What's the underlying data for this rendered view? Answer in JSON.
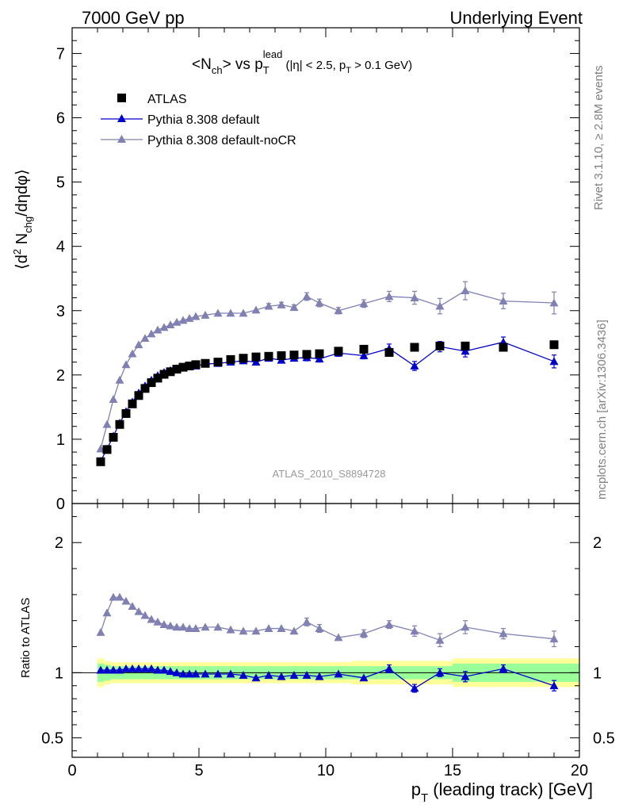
{
  "header": {
    "left": "7000 GeV pp",
    "right": "Underlying Event"
  },
  "title": {
    "prefix": "<N",
    "prefix_sub": "ch",
    "mid": "> vs p",
    "mid_sub": "T",
    "mid_sup": "lead",
    "cond1": " (|η| < 2.5, p",
    "cond_sub": "T",
    "cond2": " > 0.1 GeV)"
  },
  "side_labels": {
    "rivet": "Rivet 3.1.10, ≥ 2.8M events",
    "mcplots": "mcplots.cern.ch [arXiv:1306.3436]"
  },
  "analysis_label": "ATLAS_2010_S8894728",
  "ylabel_main": {
    "a": "⟨d",
    "a_sup": "2",
    "b": " N",
    "b_sub": "chg",
    "c": "/dηdφ⟩"
  },
  "ylabel_ratio": "Ratio to ATLAS",
  "xlabel": {
    "a": "p",
    "a_sub": "T",
    "b": " (leading track) [GeV]"
  },
  "colors": {
    "data": "#000000",
    "default": "#0000cc",
    "noCR": "#8080b3",
    "band_inner": "#99ff99",
    "band_outer": "#ffff99"
  },
  "chart_data": {
    "type": "scatter",
    "x_range": [
      0,
      20
    ],
    "main_y_range": [
      0,
      7.4
    ],
    "ratio_y_range": [
      0.35,
      2.3
    ],
    "x_ticks": [
      "0",
      "5",
      "10",
      "15",
      "20"
    ],
    "main_y_ticks": [
      "0",
      "1",
      "2",
      "3",
      "4",
      "5",
      "6",
      "7"
    ],
    "ratio_y_ticks": [
      "0.5",
      "1",
      "2"
    ],
    "x": [
      1.125,
      1.375,
      1.625,
      1.875,
      2.125,
      2.375,
      2.625,
      2.875,
      3.125,
      3.375,
      3.625,
      3.875,
      4.125,
      4.375,
      4.625,
      4.875,
      5.25,
      5.75,
      6.25,
      6.75,
      7.25,
      7.75,
      8.25,
      8.75,
      9.25,
      9.75,
      10.5,
      11.5,
      12.5,
      13.5,
      14.5,
      15.5,
      17.0,
      19.0
    ],
    "series": [
      {
        "name": "ATLAS",
        "marker": "square",
        "values": [
          0.65,
          0.84,
          1.03,
          1.23,
          1.4,
          1.55,
          1.68,
          1.79,
          1.88,
          1.95,
          2.01,
          2.05,
          2.09,
          2.12,
          2.14,
          2.16,
          2.18,
          2.2,
          2.24,
          2.26,
          2.28,
          2.29,
          2.3,
          2.31,
          2.32,
          2.33,
          2.37,
          2.4,
          2.35,
          2.43,
          2.45,
          2.45,
          2.43,
          2.47
        ],
        "ratio": [
          1,
          1,
          1,
          1,
          1,
          1,
          1,
          1,
          1,
          1,
          1,
          1,
          1,
          1,
          1,
          1,
          1,
          1,
          1,
          1,
          1,
          1,
          1,
          1,
          1,
          1,
          1,
          1,
          1,
          1,
          1,
          1,
          1,
          1
        ],
        "ratio_err_inner": [
          0.07,
          0.06,
          0.05,
          0.05,
          0.05,
          0.05,
          0.05,
          0.05,
          0.05,
          0.05,
          0.05,
          0.05,
          0.05,
          0.05,
          0.05,
          0.05,
          0.05,
          0.05,
          0.05,
          0.05,
          0.05,
          0.05,
          0.05,
          0.05,
          0.05,
          0.05,
          0.05,
          0.05,
          0.05,
          0.05,
          0.05,
          0.07,
          0.07,
          0.07
        ],
        "ratio_err_outer": [
          0.11,
          0.09,
          0.08,
          0.08,
          0.08,
          0.08,
          0.08,
          0.08,
          0.08,
          0.08,
          0.08,
          0.08,
          0.08,
          0.08,
          0.08,
          0.08,
          0.08,
          0.08,
          0.08,
          0.08,
          0.08,
          0.08,
          0.08,
          0.08,
          0.08,
          0.08,
          0.08,
          0.09,
          0.09,
          0.09,
          0.09,
          0.11,
          0.11,
          0.11
        ]
      },
      {
        "name": "Pythia 8.308 default",
        "marker": "triangle",
        "values": [
          0.66,
          0.85,
          1.05,
          1.25,
          1.43,
          1.58,
          1.72,
          1.83,
          1.92,
          1.99,
          2.04,
          2.07,
          2.1,
          2.12,
          2.13,
          2.14,
          2.17,
          2.18,
          2.2,
          2.22,
          2.2,
          2.26,
          2.23,
          2.26,
          2.27,
          2.25,
          2.34,
          2.3,
          2.41,
          2.14,
          2.44,
          2.37,
          2.51,
          2.21
        ],
        "errors": [
          0.02,
          0.02,
          0.02,
          0.02,
          0.02,
          0.02,
          0.02,
          0.02,
          0.02,
          0.02,
          0.02,
          0.02,
          0.02,
          0.02,
          0.02,
          0.02,
          0.03,
          0.03,
          0.03,
          0.03,
          0.03,
          0.04,
          0.04,
          0.04,
          0.05,
          0.05,
          0.05,
          0.05,
          0.07,
          0.07,
          0.08,
          0.09,
          0.08,
          0.1
        ],
        "ratio": [
          1.02,
          1.02,
          1.02,
          1.02,
          1.03,
          1.03,
          1.03,
          1.03,
          1.03,
          1.02,
          1.02,
          1.01,
          1.0,
          0.99,
          0.99,
          0.99,
          0.99,
          0.99,
          0.99,
          0.98,
          0.96,
          0.98,
          0.97,
          0.98,
          0.98,
          0.97,
          0.99,
          0.96,
          1.03,
          0.88,
          1.0,
          0.97,
          1.03,
          0.9
        ],
        "ratio_errors": [
          0.02,
          0.02,
          0.02,
          0.02,
          0.02,
          0.02,
          0.02,
          0.02,
          0.02,
          0.02,
          0.02,
          0.02,
          0.02,
          0.02,
          0.02,
          0.02,
          0.02,
          0.02,
          0.02,
          0.02,
          0.02,
          0.02,
          0.02,
          0.02,
          0.02,
          0.02,
          0.02,
          0.02,
          0.03,
          0.03,
          0.03,
          0.04,
          0.03,
          0.04
        ]
      },
      {
        "name": "Pythia 8.308 default-noCR",
        "marker": "triangle",
        "values": [
          0.85,
          1.23,
          1.62,
          1.92,
          2.16,
          2.33,
          2.47,
          2.57,
          2.64,
          2.7,
          2.74,
          2.78,
          2.82,
          2.85,
          2.88,
          2.91,
          2.93,
          2.96,
          2.96,
          2.96,
          3.01,
          3.07,
          3.09,
          3.05,
          3.22,
          3.12,
          3.0,
          3.11,
          3.22,
          3.2,
          3.07,
          3.31,
          3.15,
          3.12
        ],
        "errors": [
          0.02,
          0.02,
          0.02,
          0.02,
          0.02,
          0.02,
          0.02,
          0.02,
          0.02,
          0.02,
          0.02,
          0.02,
          0.02,
          0.02,
          0.02,
          0.02,
          0.03,
          0.03,
          0.03,
          0.03,
          0.03,
          0.04,
          0.04,
          0.04,
          0.06,
          0.06,
          0.05,
          0.06,
          0.08,
          0.1,
          0.12,
          0.14,
          0.12,
          0.17
        ],
        "ratio": [
          1.31,
          1.46,
          1.58,
          1.58,
          1.55,
          1.51,
          1.47,
          1.44,
          1.41,
          1.39,
          1.37,
          1.36,
          1.35,
          1.35,
          1.34,
          1.34,
          1.35,
          1.35,
          1.33,
          1.32,
          1.32,
          1.34,
          1.34,
          1.32,
          1.39,
          1.34,
          1.27,
          1.3,
          1.37,
          1.32,
          1.25,
          1.35,
          1.3,
          1.26
        ],
        "ratio_errors": [
          0.02,
          0.02,
          0.02,
          0.02,
          0.02,
          0.02,
          0.02,
          0.02,
          0.02,
          0.02,
          0.02,
          0.02,
          0.02,
          0.02,
          0.02,
          0.02,
          0.02,
          0.02,
          0.02,
          0.02,
          0.02,
          0.02,
          0.02,
          0.02,
          0.03,
          0.03,
          0.02,
          0.03,
          0.03,
          0.04,
          0.05,
          0.05,
          0.04,
          0.06
        ]
      }
    ]
  }
}
